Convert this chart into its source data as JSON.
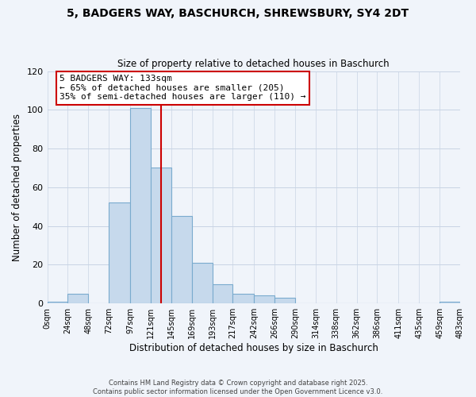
{
  "title": "5, BADGERS WAY, BASCHURCH, SHREWSBURY, SY4 2DT",
  "subtitle": "Size of property relative to detached houses in Baschurch",
  "xlabel": "Distribution of detached houses by size in Baschurch",
  "ylabel": "Number of detached properties",
  "bin_edges": [
    0,
    24,
    48,
    72,
    97,
    121,
    145,
    169,
    193,
    217,
    242,
    266,
    290,
    314,
    338,
    362,
    386,
    411,
    435,
    459,
    483
  ],
  "bin_labels": [
    "0sqm",
    "24sqm",
    "48sqm",
    "72sqm",
    "97sqm",
    "121sqm",
    "145sqm",
    "169sqm",
    "193sqm",
    "217sqm",
    "242sqm",
    "266sqm",
    "290sqm",
    "314sqm",
    "338sqm",
    "362sqm",
    "386sqm",
    "411sqm",
    "435sqm",
    "459sqm",
    "483sqm"
  ],
  "counts": [
    1,
    5,
    0,
    52,
    101,
    70,
    45,
    21,
    10,
    5,
    4,
    3,
    0,
    0,
    0,
    0,
    0,
    0,
    0,
    1
  ],
  "bar_color": "#c6d9ec",
  "bar_edge_color": "#7aabce",
  "vline_x": 133,
  "vline_color": "#cc0000",
  "ylim": [
    0,
    120
  ],
  "yticks": [
    0,
    20,
    40,
    60,
    80,
    100,
    120
  ],
  "annotation_title": "5 BADGERS WAY: 133sqm",
  "annotation_line1": "← 65% of detached houses are smaller (205)",
  "annotation_line2": "35% of semi-detached houses are larger (110) →",
  "footer1": "Contains HM Land Registry data © Crown copyright and database right 2025.",
  "footer2": "Contains public sector information licensed under the Open Government Licence v3.0.",
  "bg_color": "#f0f4fa",
  "grid_color": "#c8d4e4"
}
